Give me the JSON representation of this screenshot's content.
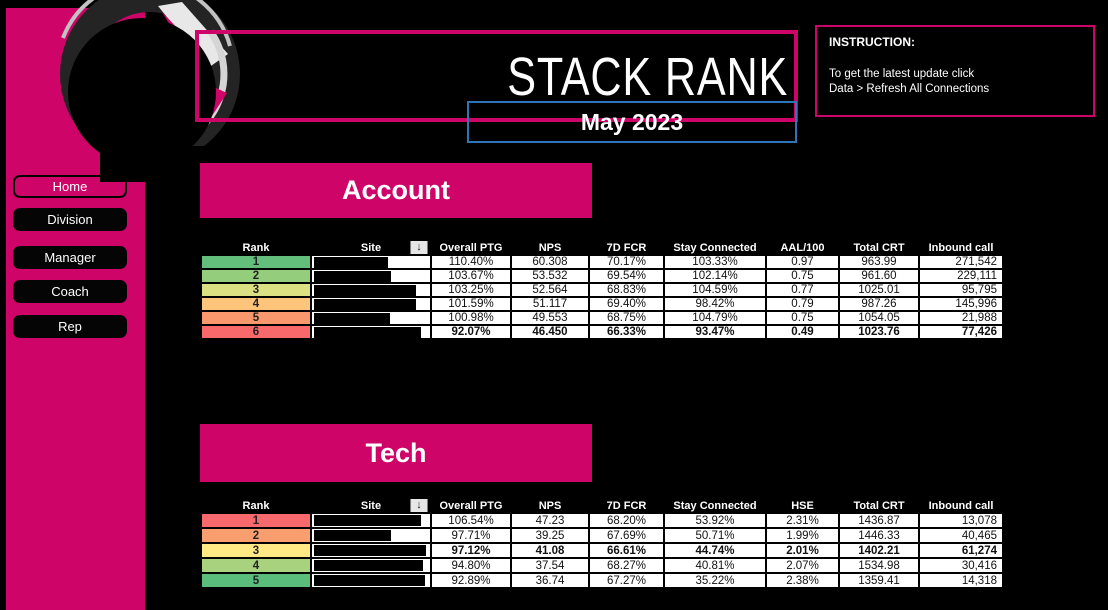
{
  "header": {
    "title": "STACK RANK",
    "subtitle": "May 2023"
  },
  "instruction": {
    "heading": "INSTRUCTION:",
    "lines": [
      "To get the latest update click",
      "Data > Refresh All Connections"
    ]
  },
  "sidebar": {
    "items": [
      {
        "label": "Home",
        "active": true
      },
      {
        "label": "Division",
        "active": false
      },
      {
        "label": "Manager",
        "active": false
      },
      {
        "label": "Coach",
        "active": false
      },
      {
        "label": "Rep",
        "active": false
      }
    ]
  },
  "icons": {
    "sort_descending": "↓",
    "logo": "redacted-brand-logo"
  },
  "colors": {
    "magenta": "#CE0469",
    "blue": "#2E75B6",
    "table_text": "#111111"
  },
  "tables": [
    {
      "id": "account",
      "title": "Account",
      "headers": [
        "Rank",
        "Site",
        "Overall PTG",
        "NPS",
        "7D FCR",
        "Stay Connected",
        "AAL/100",
        "Total CRT",
        "Inbound call"
      ],
      "rows": [
        {
          "rank": "1",
          "color": "#63BE7B",
          "bold": false,
          "values": [
            "110.40%",
            "60.308",
            "70.17%",
            "103.33%",
            "0.97",
            "963.99",
            "271,542"
          ]
        },
        {
          "rank": "2",
          "color": "#94CE7D",
          "bold": false,
          "values": [
            "103.67%",
            "53.532",
            "69.54%",
            "102.14%",
            "0.75",
            "961.60",
            "229,111"
          ]
        },
        {
          "rank": "3",
          "color": "#DBE082",
          "bold": false,
          "values": [
            "103.25%",
            "52.564",
            "68.83%",
            "104.59%",
            "0.77",
            "1025.01",
            "95,795"
          ]
        },
        {
          "rank": "4",
          "color": "#FDC47C",
          "bold": false,
          "values": [
            "101.59%",
            "51.117",
            "69.40%",
            "98.42%",
            "0.79",
            "987.26",
            "145,996"
          ]
        },
        {
          "rank": "5",
          "color": "#F9986D",
          "bold": false,
          "values": [
            "100.98%",
            "49.553",
            "68.75%",
            "104.79%",
            "0.75",
            "1054.05",
            "21,988"
          ]
        },
        {
          "rank": "6",
          "color": "#F8696B",
          "bold": true,
          "values": [
            "92.07%",
            "46.450",
            "66.33%",
            "93.47%",
            "0.49",
            "1023.76",
            "77,426"
          ]
        }
      ]
    },
    {
      "id": "tech",
      "title": "Tech",
      "headers": [
        "Rank",
        "Site",
        "Overall PTG",
        "NPS",
        "7D FCR",
        "Stay Connected",
        "HSE",
        "Total CRT",
        "Inbound call"
      ],
      "rows": [
        {
          "rank": "1",
          "color": "#F7696C",
          "bold": false,
          "values": [
            "106.54%",
            "47.23",
            "68.20%",
            "53.92%",
            "2.31%",
            "1436.87",
            "13,078"
          ]
        },
        {
          "rank": "2",
          "color": "#F99E6F",
          "bold": false,
          "values": [
            "97.71%",
            "39.25",
            "67.69%",
            "50.71%",
            "1.99%",
            "1446.33",
            "40,465"
          ]
        },
        {
          "rank": "3",
          "color": "#FFE984",
          "bold": true,
          "values": [
            "97.12%",
            "41.08",
            "66.61%",
            "44.74%",
            "2.01%",
            "1402.21",
            "61,274"
          ]
        },
        {
          "rank": "4",
          "color": "#A9D27F",
          "bold": false,
          "values": [
            "94.80%",
            "37.54",
            "68.27%",
            "40.81%",
            "2.07%",
            "1534.98",
            "30,416"
          ]
        },
        {
          "rank": "5",
          "color": "#5ABD7B",
          "bold": false,
          "values": [
            "92.89%",
            "36.74",
            "67.27%",
            "35.22%",
            "2.38%",
            "1359.41",
            "14,318"
          ]
        }
      ]
    }
  ]
}
